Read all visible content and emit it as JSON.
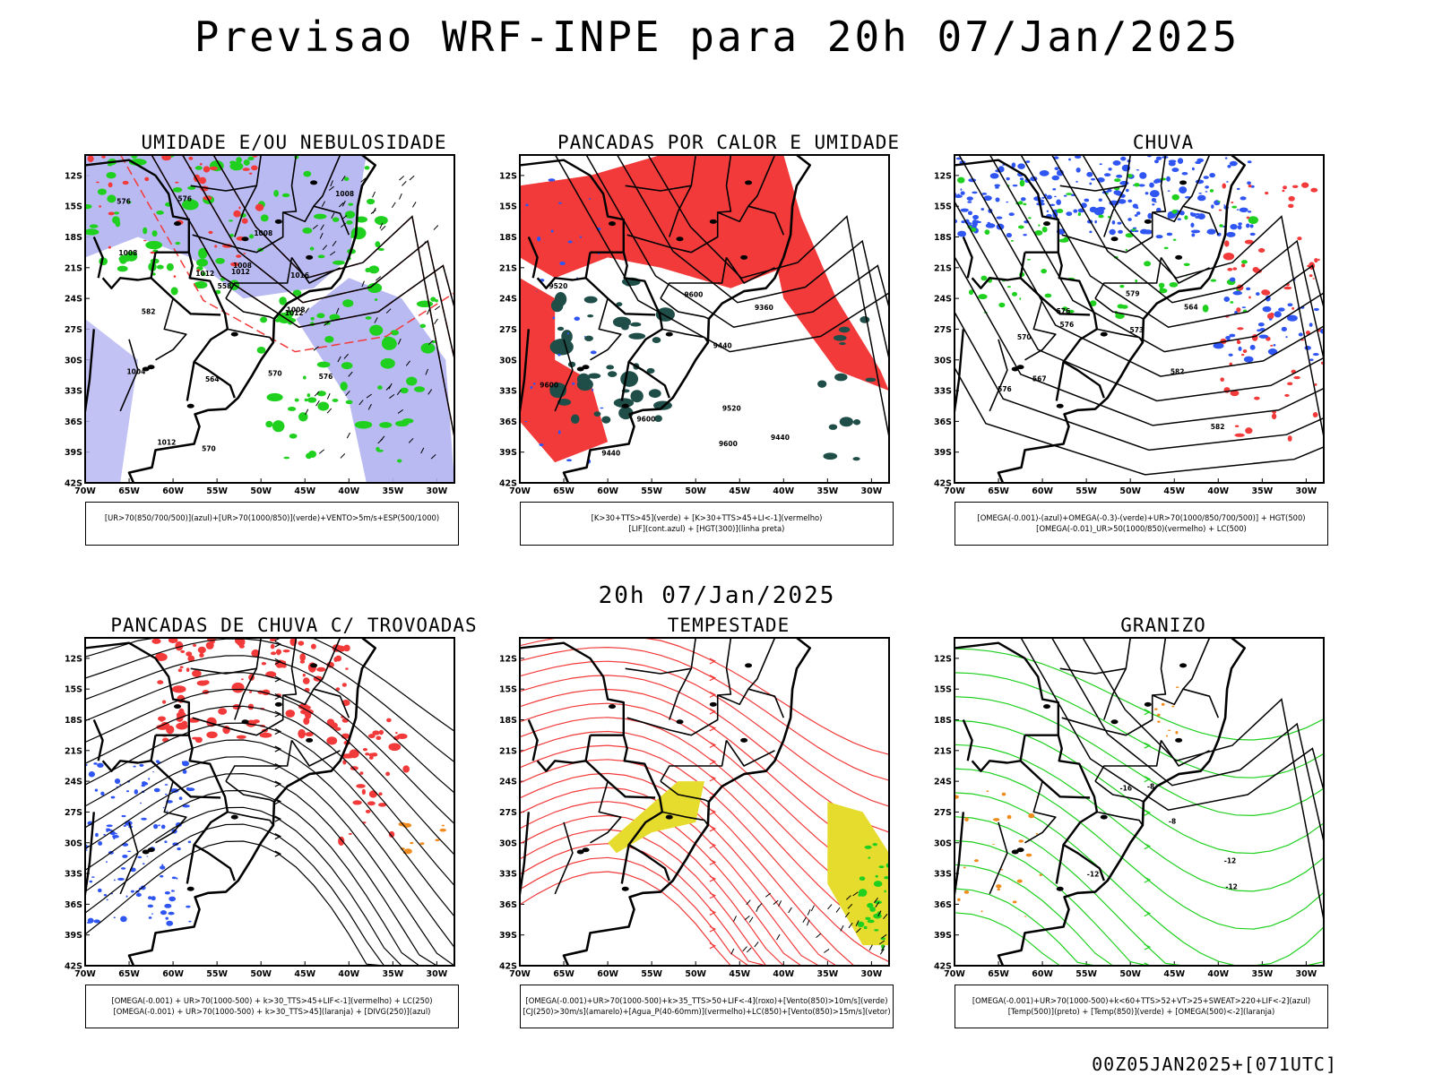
{
  "main_title": "Previsao WRF-INPE  para 20h 07/Jan/2025",
  "mid_title": "20h 07/Jan/2025",
  "footer": "00Z05JAN2025+[071UTC]",
  "lat_labels": [
    "12S",
    "15S",
    "18S",
    "21S",
    "24S",
    "27S",
    "30S",
    "33S",
    "36S",
    "39S",
    "42S"
  ],
  "lon_labels": [
    "70W",
    "65W",
    "60W",
    "55W",
    "50W",
    "45W",
    "40W",
    "35W",
    "30W"
  ],
  "colors": {
    "blue": "#2f55f2",
    "lavender": "#b3b3f2",
    "green": "#1fd01f",
    "red": "#f23a3a",
    "darkteal": "#1f4d48",
    "yellow": "#e6dc2e",
    "orange": "#f08c1e",
    "purple": "#cc33cc"
  },
  "panels": [
    {
      "title": "UMIDADE E/OU NEBULOSIDADE",
      "legend_lines": [
        "[UR>70(850/700/500)](azul)+[UR>70(1000/850)](verde)+VENTO>5m/s+ESP(500/1000)"
      ],
      "contour_labels": [
        "1008",
        "1008",
        "1008",
        "1008",
        "1012",
        "1012",
        "1016",
        "1012",
        "1012",
        "1004",
        "1008",
        "576",
        "576",
        "570",
        "570",
        "564",
        "558",
        "582",
        "576"
      ]
    },
    {
      "title": "PANCADAS POR CALOR E UMIDADE",
      "legend_lines": [
        "[K>30+TTS>45](verde) + [K>30+TTS>45+LI<-1](vermelho)",
        "[LIF](cont.azul) + [HGT(300)](linha preta)"
      ],
      "contour_labels": [
        "9600",
        "9600",
        "9520",
        "9440",
        "9360",
        "9600",
        "9440",
        "9440",
        "9520",
        "9600"
      ]
    },
    {
      "title": "CHUVA",
      "legend_lines": [
        "[OMEGA(-0.001)-(azul)+OMEGA(-0.3)-(verde)+UR>70(1000/850/700/500)] + HGT(500)",
        "[OMEGA(-0.01)_UR>50(1000/850)(vermelho) + LC(500)"
      ],
      "contour_labels": [
        "582",
        "576",
        "570",
        "576",
        "567",
        "564",
        "579",
        "582",
        "573",
        "576"
      ]
    },
    {
      "title": "PANCADAS DE CHUVA C/ TROVOADAS",
      "legend_lines": [
        "[OMEGA(-0.001) + UR>70(1000-500) + k>30_TTS>45+LIF<-1](vermelho) + LC(250)",
        "[OMEGA(-0.001) + UR>70(1000-500) + k>30_TTS>45](laranja) + [DIVG(250)](azul)"
      ],
      "contour_labels": []
    },
    {
      "title": "TEMPESTADE",
      "legend_lines": [
        "[OMEGA(-0.001)+UR>70(1000-500)+k>35_TTS>50+LIF<-4](roxo)+[Vento(850)>10m/s](verde)",
        "[CJ(250)>30m/s](amarelo)+[Agua_P(40-60mm)](vermelho)+LC(850)+[Vento(850)>15m/s](vetor)"
      ],
      "contour_labels": []
    },
    {
      "title": "GRANIZO",
      "legend_lines": [
        "[OMEGA(-0.001)+UR>70(1000-500)+k<60+TTS>52+VT>25+SWEAT>220+LIF<-2](azul)",
        "[Temp(500)](preto) + [Temp(850)](verde) + [OMEGA(500)<-2](laranja)"
      ],
      "contour_labels": [
        "-12",
        "-16",
        "-12",
        "-8",
        "-12",
        "-8"
      ]
    }
  ]
}
